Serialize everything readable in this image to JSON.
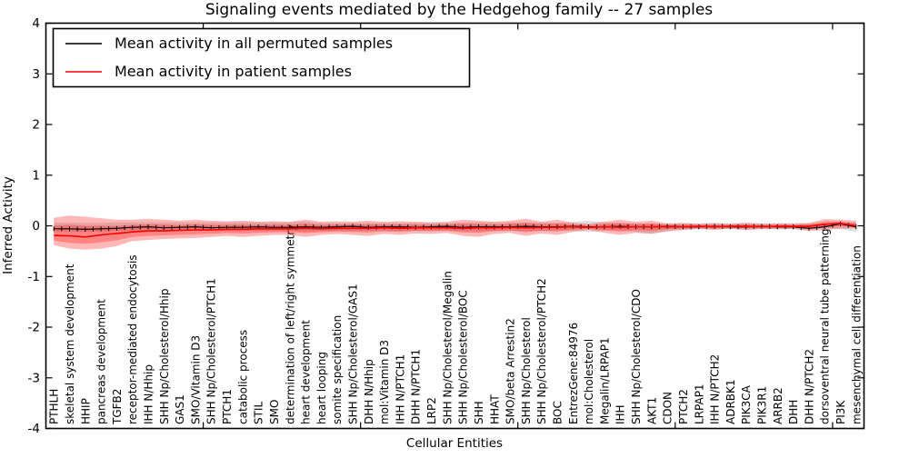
{
  "chart_data": {
    "type": "line",
    "title": "Signaling events mediated by the Hedgehog family -- 27 samples",
    "xlabel": "Cellular Entities",
    "ylabel": "Inferred Activity",
    "ylim": [
      -4,
      4
    ],
    "yticks": [
      4,
      3,
      2,
      1,
      0,
      -1,
      -2,
      -3,
      -4
    ],
    "grid": false,
    "legend_position": "upper left",
    "categories": [
      "PTHLH",
      "skeletal system development",
      "HHIP",
      "pancreas development",
      "TGFB2",
      "receptor-mediated endocytosis",
      "IHH N/Hhip",
      "SHH Np/Cholesterol/Hhip",
      "GAS1",
      "SMO/Vitamin D3",
      "SHH Np/Cholesterol/PTCH1",
      "PTCH1",
      "catabolic process",
      "STIL",
      "SMO",
      "determination of left/right symmetry",
      "heart development",
      "heart looping",
      "somite specification",
      "SHH Np/Cholesterol/GAS1",
      "DHH N/Hhip",
      "mol:Vitamin D3",
      "IHH N/PTCH1",
      "DHH N/PTCH1",
      "LRP2",
      "SHH Np/Cholesterol/Megalin",
      "SHH Np/Cholesterol/BOC",
      "SHH",
      "HHAT",
      "SMO/beta Arrestin2",
      "SHH Np/Cholesterol",
      "SHH Np/Cholesterol/PTCH2",
      "BOC",
      "EntrezGene:84976",
      "mol:Cholesterol",
      "Megalin/LRPAP1",
      "IHH",
      "SHH Np/Cholesterol/CDO",
      "AKT1",
      "CDON",
      "PTCH2",
      "LRPAP1",
      "IHH N/PTCH2",
      "ADRBK1",
      "PIK3CA",
      "PIK3R1",
      "ARRB2",
      "DHH",
      "DHH N/PTCH2",
      "dorsoventral neural tube patterning",
      "PI3K",
      "mesenchymal cell differentiation"
    ],
    "series": [
      {
        "name": "Mean activity in all permuted samples",
        "color": "#000000",
        "band_color": "#999999",
        "values": [
          -0.06,
          -0.06,
          -0.07,
          -0.06,
          -0.05,
          -0.03,
          -0.02,
          -0.04,
          -0.03,
          -0.02,
          -0.04,
          -0.03,
          -0.03,
          -0.02,
          -0.03,
          -0.03,
          -0.02,
          -0.03,
          -0.02,
          -0.01,
          -0.03,
          -0.02,
          -0.02,
          -0.03,
          -0.02,
          -0.01,
          -0.03,
          -0.02,
          -0.02,
          -0.02,
          -0.01,
          -0.02,
          -0.02,
          -0.01,
          -0.02,
          -0.02,
          -0.01,
          -0.02,
          -0.02,
          -0.01,
          -0.02,
          -0.02,
          -0.01,
          -0.02,
          -0.02,
          -0.01,
          -0.02,
          -0.02,
          -0.05,
          -0.02,
          0.04,
          -0.02
        ],
        "band_upper": [
          0.06,
          0.06,
          0.06,
          0.06,
          0.07,
          0.07,
          0.07,
          0.07,
          0.07,
          0.07,
          0.07,
          0.07,
          0.07,
          0.07,
          0.07,
          0.07,
          0.08,
          0.06,
          0.06,
          0.06,
          0.06,
          0.06,
          0.06,
          0.06,
          0.06,
          0.06,
          0.07,
          0.07,
          0.07,
          0.07,
          0.07,
          0.07,
          0.06,
          0.08,
          0.1,
          0.07,
          0.06,
          0.05,
          0.05,
          0.04,
          0.05,
          0.05,
          0.06,
          0.05,
          0.06,
          0.05,
          0.05,
          0.06,
          0.05,
          0.04,
          0.05,
          0.06
        ],
        "band_lower": [
          -0.12,
          -0.12,
          -0.12,
          -0.12,
          -0.1,
          -0.1,
          -0.1,
          -0.1,
          -0.1,
          -0.1,
          -0.1,
          -0.1,
          -0.1,
          -0.1,
          -0.1,
          -0.1,
          -0.12,
          -0.1,
          -0.1,
          -0.1,
          -0.1,
          -0.1,
          -0.1,
          -0.1,
          -0.1,
          -0.1,
          -0.1,
          -0.1,
          -0.1,
          -0.1,
          -0.1,
          -0.1,
          -0.09,
          -0.1,
          -0.12,
          -0.1,
          -0.09,
          -0.12,
          -0.15,
          -0.12,
          -0.08,
          -0.07,
          -0.07,
          -0.06,
          -0.08,
          -0.07,
          -0.06,
          -0.07,
          -0.08,
          -0.06,
          -0.06,
          -0.12
        ]
      },
      {
        "name": "Mean activity in patient samples",
        "color": "#ff0000",
        "band_color": "#ff0000",
        "values": [
          -0.19,
          -0.2,
          -0.22,
          -0.18,
          -0.15,
          -0.12,
          -0.1,
          -0.1,
          -0.09,
          -0.08,
          -0.08,
          -0.07,
          -0.07,
          -0.06,
          -0.06,
          -0.06,
          -0.05,
          -0.06,
          -0.05,
          -0.05,
          -0.05,
          -0.04,
          -0.05,
          -0.04,
          -0.04,
          -0.04,
          -0.05,
          -0.04,
          -0.04,
          -0.03,
          -0.04,
          -0.03,
          -0.03,
          -0.02,
          -0.03,
          -0.02,
          -0.03,
          -0.02,
          -0.02,
          -0.02,
          -0.02,
          -0.01,
          -0.02,
          -0.01,
          -0.01,
          -0.02,
          -0.01,
          -0.01,
          -0.01,
          0.03,
          0.05,
          0.0
        ],
        "band_upper": [
          0.16,
          0.2,
          0.18,
          0.15,
          0.12,
          0.12,
          0.14,
          0.12,
          0.1,
          0.12,
          0.1,
          0.09,
          0.1,
          0.08,
          0.09,
          0.08,
          0.12,
          0.08,
          0.09,
          0.08,
          0.1,
          0.08,
          0.09,
          0.08,
          0.07,
          0.08,
          0.12,
          0.1,
          0.08,
          0.1,
          0.14,
          0.08,
          0.12,
          0.06,
          0.04,
          0.08,
          0.12,
          0.08,
          0.1,
          0.05,
          0.06,
          0.04,
          0.05,
          0.04,
          0.06,
          0.04,
          0.05,
          0.04,
          0.06,
          0.13,
          0.12,
          0.1
        ],
        "band_lower": [
          -0.38,
          -0.45,
          -0.47,
          -0.45,
          -0.4,
          -0.3,
          -0.28,
          -0.26,
          -0.25,
          -0.24,
          -0.22,
          -0.2,
          -0.22,
          -0.2,
          -0.18,
          -0.18,
          -0.22,
          -0.18,
          -0.16,
          -0.18,
          -0.2,
          -0.16,
          -0.18,
          -0.15,
          -0.16,
          -0.14,
          -0.2,
          -0.22,
          -0.16,
          -0.14,
          -0.2,
          -0.15,
          -0.18,
          -0.12,
          -0.08,
          -0.14,
          -0.18,
          -0.14,
          -0.16,
          -0.1,
          -0.08,
          -0.06,
          -0.08,
          -0.06,
          -0.08,
          -0.06,
          -0.07,
          -0.06,
          -0.1,
          -0.08,
          -0.06,
          -0.05
        ]
      }
    ]
  }
}
